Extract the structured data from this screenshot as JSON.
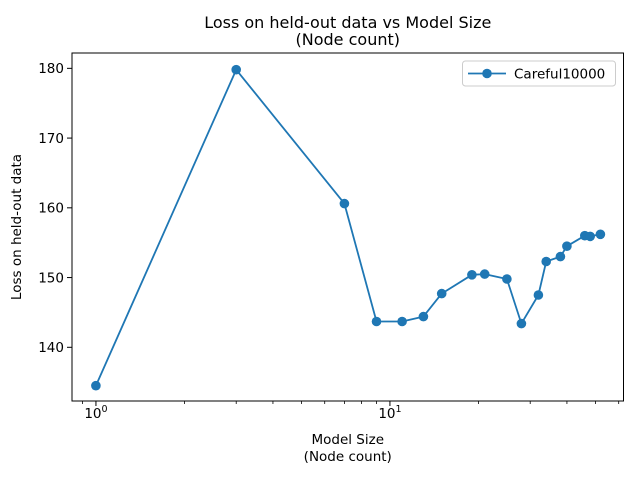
{
  "chart": {
    "title_line1": "Loss on held-out data vs Model Size",
    "title_line2": "(Node count)",
    "xlabel_line1": "Model Size",
    "xlabel_line2": "(Node count)",
    "ylabel": "Loss on held-out data",
    "legend_label": "Careful10000"
  },
  "chart_data": {
    "type": "line",
    "title": "Loss on held-out data vs Model Size\n(Node count)",
    "xlabel": "Model Size\n(Node count)",
    "ylabel": "Loss on held-out data",
    "x_scale": "log",
    "y_scale": "linear",
    "xlim": [
      0.829,
      62.3
    ],
    "ylim": [
      132.3,
      182.2
    ],
    "grid": false,
    "legend_position": "upper right",
    "x_major_ticks": [
      {
        "value": 1,
        "base": "10",
        "exp": "0"
      },
      {
        "value": 10,
        "base": "10",
        "exp": "1"
      }
    ],
    "x_minor_ticks": [
      0.9,
      2,
      3,
      4,
      5,
      6,
      7,
      8,
      9,
      20,
      30,
      40,
      50,
      60
    ],
    "y_ticks": [
      140,
      150,
      160,
      170,
      180
    ],
    "series": [
      {
        "name": "Careful10000",
        "color": "#1f77b4",
        "marker": "circle",
        "x": [
          1,
          3,
          7,
          9,
          11,
          13,
          15,
          19,
          21,
          25,
          28,
          32,
          34,
          38,
          40,
          46,
          48,
          52
        ],
        "y": [
          134.5,
          179.8,
          160.6,
          143.7,
          143.7,
          144.4,
          147.7,
          150.4,
          150.5,
          149.8,
          143.4,
          147.5,
          152.3,
          153.0,
          154.5,
          156.0,
          155.9,
          156.2
        ]
      }
    ]
  }
}
